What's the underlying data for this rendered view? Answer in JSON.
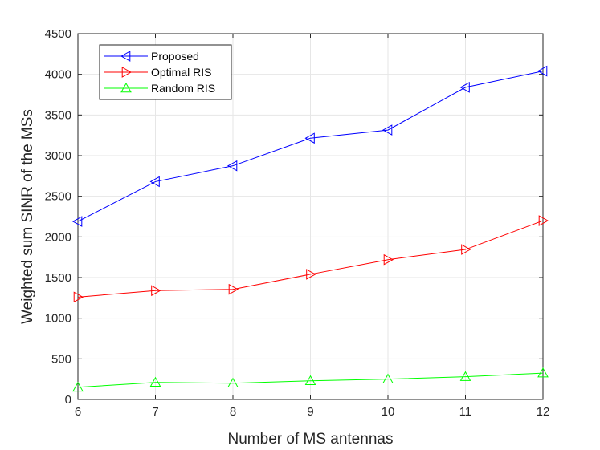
{
  "chart_data": {
    "type": "line",
    "x": [
      6,
      7,
      8,
      9,
      10,
      11,
      12
    ],
    "xlim": [
      6,
      12
    ],
    "ylim": [
      0,
      4500
    ],
    "xticks": [
      6,
      7,
      8,
      9,
      10,
      11,
      12
    ],
    "yticks": [
      0,
      500,
      1000,
      1500,
      2000,
      2500,
      3000,
      3500,
      4000,
      4500
    ],
    "xlabel": "Number of MS antennas",
    "ylabel": "Weighted sum SINR of the MSs",
    "grid": true,
    "legend_position": "top-left",
    "series": [
      {
        "name": "Proposed",
        "color": "#0000ff",
        "marker": "triangle-left",
        "values": [
          2190,
          2680,
          2875,
          3215,
          3315,
          3840,
          4040
        ]
      },
      {
        "name": "Optimal RIS",
        "color": "#ff0000",
        "marker": "triangle-right",
        "values": [
          1260,
          1340,
          1355,
          1540,
          1720,
          1845,
          2200
        ]
      },
      {
        "name": "Random RIS",
        "color": "#00ff00",
        "marker": "triangle-up",
        "values": [
          150,
          210,
          200,
          230,
          250,
          280,
          325
        ]
      }
    ]
  }
}
